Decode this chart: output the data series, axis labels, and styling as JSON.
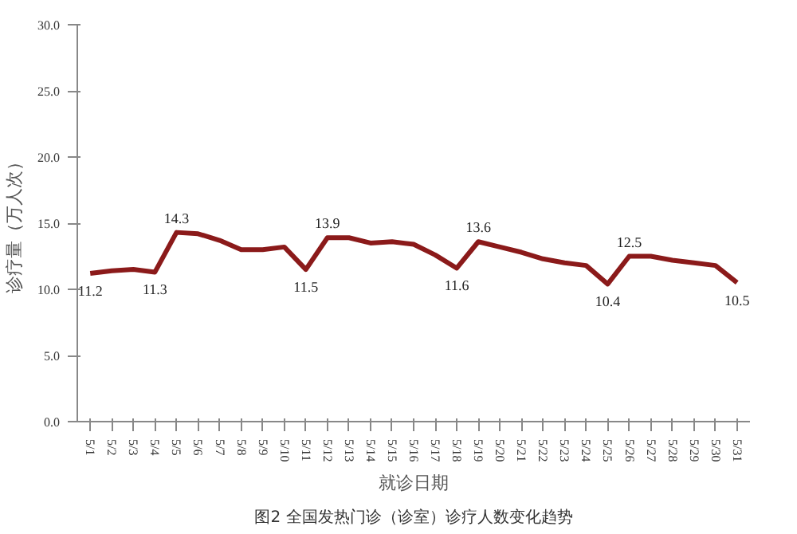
{
  "chart_data": {
    "type": "line",
    "categories": [
      "5/1",
      "5/2",
      "5/3",
      "5/4",
      "5/5",
      "5/6",
      "5/7",
      "5/8",
      "5/9",
      "5/10",
      "5/11",
      "5/12",
      "5/13",
      "5/14",
      "5/15",
      "5/16",
      "5/17",
      "5/18",
      "5/19",
      "5/20",
      "5/21",
      "5/22",
      "5/23",
      "5/24",
      "5/25",
      "5/26",
      "5/27",
      "5/28",
      "5/29",
      "5/30",
      "5/31"
    ],
    "series": [
      {
        "color": "#8b1a1a",
        "values": [
          11.2,
          11.4,
          11.5,
          11.3,
          14.3,
          14.2,
          13.7,
          13.0,
          13.0,
          13.2,
          11.5,
          13.9,
          13.9,
          13.5,
          13.6,
          13.4,
          12.6,
          11.6,
          13.6,
          13.2,
          12.8,
          12.3,
          12.0,
          11.8,
          10.4,
          12.5,
          12.5,
          12.2,
          12.0,
          11.8,
          10.5
        ],
        "value_labels": [
          "11.2",
          null,
          null,
          "11.3",
          "14.3",
          null,
          null,
          null,
          null,
          null,
          "11.5",
          "13.9",
          null,
          null,
          null,
          null,
          null,
          "11.6",
          "13.6",
          null,
          null,
          null,
          null,
          null,
          "10.4",
          "12.5",
          null,
          null,
          null,
          null,
          "10.5"
        ]
      }
    ],
    "xlabel": "就诊日期",
    "ylabel": "诊疗量（万人次）",
    "ylim": [
      0,
      30
    ],
    "yticks": [
      {
        "value": 0,
        "label": "0.0"
      },
      {
        "value": 5,
        "label": "5.0"
      },
      {
        "value": 10,
        "label": "10.0"
      },
      {
        "value": 15,
        "label": "15.0"
      },
      {
        "value": 20,
        "label": "20.0"
      },
      {
        "value": 25,
        "label": "25.0"
      },
      {
        "value": 30,
        "label": "30.0"
      }
    ],
    "grid": false,
    "marker": "none",
    "line_style": "solid",
    "annotations": [
      "图2 全国发热门诊（诊室）诊疗人数变化趋势"
    ]
  }
}
